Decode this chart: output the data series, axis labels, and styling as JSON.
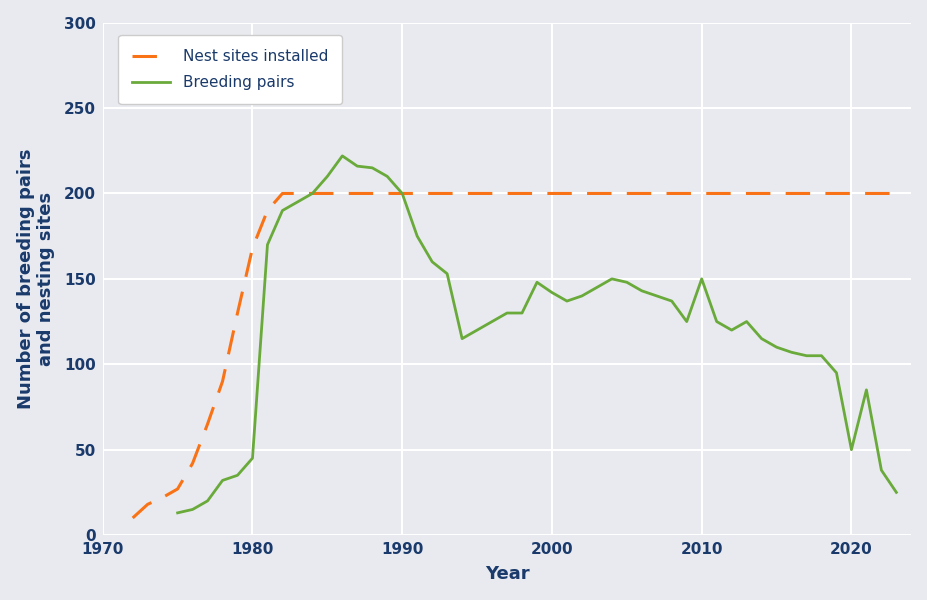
{
  "title": "",
  "xlabel": "Year",
  "ylabel": "Number of breeding pairs\nand nesting sites",
  "xlim": [
    1970,
    2024
  ],
  "ylim": [
    0,
    300
  ],
  "yticks": [
    0,
    50,
    100,
    150,
    200,
    250,
    300
  ],
  "xticks": [
    1970,
    1980,
    1990,
    2000,
    2010,
    2020
  ],
  "background_color": "#e8eaf0",
  "plot_bg_color": "#e8eaf0",
  "grid_color": "#ffffff",
  "nest_sites": {
    "x": [
      1972,
      1973,
      1974,
      1975,
      1976,
      1977,
      1978,
      1979,
      1980,
      1981,
      1982,
      1983,
      2023
    ],
    "y": [
      10,
      18,
      22,
      27,
      42,
      65,
      90,
      130,
      168,
      190,
      200,
      200,
      200
    ],
    "color": "#f97316",
    "linestyle": "dashed",
    "linewidth": 2.2,
    "label": "Nest sites installed",
    "dash_pattern": [
      8,
      5
    ]
  },
  "breeding_pairs": {
    "x": [
      1975,
      1976,
      1977,
      1978,
      1979,
      1980,
      1981,
      1982,
      1983,
      1984,
      1985,
      1986,
      1987,
      1988,
      1989,
      1990,
      1991,
      1992,
      1993,
      1994,
      1995,
      1996,
      1997,
      1998,
      1999,
      2000,
      2001,
      2002,
      2003,
      2004,
      2005,
      2006,
      2007,
      2008,
      2009,
      2010,
      2011,
      2012,
      2013,
      2014,
      2015,
      2016,
      2017,
      2018,
      2019,
      2020,
      2021,
      2022,
      2023
    ],
    "y": [
      13,
      15,
      20,
      32,
      35,
      45,
      170,
      190,
      195,
      200,
      210,
      222,
      216,
      215,
      210,
      200,
      175,
      160,
      153,
      115,
      120,
      125,
      130,
      130,
      148,
      142,
      137,
      140,
      145,
      150,
      148,
      143,
      140,
      137,
      125,
      150,
      125,
      120,
      125,
      115,
      110,
      107,
      105,
      105,
      95,
      50,
      85,
      38,
      25
    ],
    "color": "#6aaa3a",
    "linestyle": "solid",
    "linewidth": 2.0,
    "label": "Breeding pairs"
  },
  "legend_fontsize": 11,
  "axis_label_fontsize": 13,
  "tick_fontsize": 11,
  "label_color": "#1a3a6b"
}
